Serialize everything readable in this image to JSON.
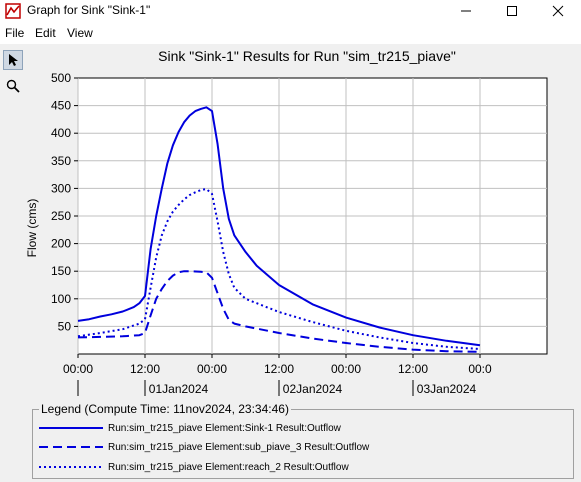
{
  "window": {
    "title": "Graph for Sink \"Sink-1\"",
    "minimize": "—",
    "maximize": "☐",
    "close": "✕"
  },
  "menu": [
    "File",
    "Edit",
    "View"
  ],
  "tools": [
    {
      "name": "select-tool",
      "icon": "arrow-pointer-icon",
      "active": true
    },
    {
      "name": "zoom-tool",
      "icon": "magnifier-icon",
      "active": false
    }
  ],
  "colors": {
    "series": "#0000dd",
    "grid": "#c0c0c0",
    "panel": "#f0f0f0"
  },
  "chart_data": {
    "type": "line",
    "title": "Sink \"Sink-1\" Results for Run \"sim_tr215_piave\"",
    "xlabel": "",
    "ylabel": "Flow (cms)",
    "ylim": [
      0,
      500
    ],
    "yticks": [
      50,
      100,
      150,
      200,
      250,
      300,
      350,
      400,
      450,
      500
    ],
    "xlim": [
      "2023-12-31T00:00",
      "2024-01-03T12:00"
    ],
    "xticks": [
      {
        "t": "2023-12-31T00:00",
        "label": "00:00"
      },
      {
        "t": "2023-12-31T12:00",
        "label": "12:00"
      },
      {
        "t": "2024-01-01T00:00",
        "label": "00:00"
      },
      {
        "t": "2024-01-01T12:00",
        "label": "12:00"
      },
      {
        "t": "2024-01-02T00:00",
        "label": "00:00"
      },
      {
        "t": "2024-01-02T12:00",
        "label": "12:00"
      },
      {
        "t": "2024-01-03T00:00",
        "label": "00:0"
      }
    ],
    "date_labels": [
      {
        "t": "2023-12-31T18:00",
        "label": "01Jan2024"
      },
      {
        "t": "2024-01-01T18:00",
        "label": "02Jan2024"
      },
      {
        "t": "2024-01-02T18:00",
        "label": "03Jan2024"
      }
    ],
    "date_separators": [
      "2023-12-31T00:00",
      "2023-12-31T12:00",
      "2024-01-01T12:00",
      "2024-01-02T12:00"
    ],
    "grid": true,
    "series": [
      {
        "name": "Run:sim_tr215_piave Element:Sink-1 Result:Outflow",
        "dash": "solid",
        "points": [
          [
            "2023-12-31T00:00",
            60
          ],
          [
            "2023-12-31T02:00",
            63
          ],
          [
            "2023-12-31T04:00",
            68
          ],
          [
            "2023-12-31T06:00",
            72
          ],
          [
            "2023-12-31T08:00",
            77
          ],
          [
            "2023-12-31T10:00",
            85
          ],
          [
            "2023-12-31T11:00",
            92
          ],
          [
            "2023-12-31T12:00",
            105
          ],
          [
            "2023-12-31T13:00",
            190
          ],
          [
            "2023-12-31T14:00",
            250
          ],
          [
            "2023-12-31T15:00",
            300
          ],
          [
            "2023-12-31T16:00",
            345
          ],
          [
            "2023-12-31T17:00",
            378
          ],
          [
            "2023-12-31T18:00",
            402
          ],
          [
            "2023-12-31T19:00",
            420
          ],
          [
            "2023-12-31T20:00",
            432
          ],
          [
            "2023-12-31T21:00",
            440
          ],
          [
            "2023-12-31T22:00",
            444
          ],
          [
            "2023-12-31T23:00",
            447
          ],
          [
            "2024-01-01T00:00",
            440
          ],
          [
            "2024-01-01T01:00",
            380
          ],
          [
            "2024-01-01T02:00",
            300
          ],
          [
            "2024-01-01T03:00",
            245
          ],
          [
            "2024-01-01T04:00",
            215
          ],
          [
            "2024-01-01T06:00",
            185
          ],
          [
            "2024-01-01T08:00",
            160
          ],
          [
            "2024-01-01T12:00",
            125
          ],
          [
            "2024-01-01T18:00",
            90
          ],
          [
            "2024-01-02T00:00",
            66
          ],
          [
            "2024-01-02T06:00",
            48
          ],
          [
            "2024-01-02T12:00",
            34
          ],
          [
            "2024-01-02T18:00",
            24
          ],
          [
            "2024-01-03T00:00",
            16
          ]
        ]
      },
      {
        "name": "Run:sim_tr215_piave Element:sub_piave_3 Result:Outflow",
        "dash": "dashed",
        "points": [
          [
            "2023-12-31T00:00",
            30
          ],
          [
            "2023-12-31T04:00",
            31
          ],
          [
            "2023-12-31T08:00",
            32
          ],
          [
            "2023-12-31T11:00",
            34
          ],
          [
            "2023-12-31T12:00",
            38
          ],
          [
            "2023-12-31T13:00",
            70
          ],
          [
            "2023-12-31T14:00",
            100
          ],
          [
            "2023-12-31T15:00",
            118
          ],
          [
            "2023-12-31T16:00",
            132
          ],
          [
            "2023-12-31T17:00",
            142
          ],
          [
            "2023-12-31T18:00",
            148
          ],
          [
            "2023-12-31T19:00",
            150
          ],
          [
            "2023-12-31T20:00",
            150
          ],
          [
            "2023-12-31T22:00",
            149
          ],
          [
            "2023-12-31T23:00",
            148
          ],
          [
            "2024-01-01T00:00",
            138
          ],
          [
            "2024-01-01T01:00",
            110
          ],
          [
            "2024-01-01T02:00",
            82
          ],
          [
            "2024-01-01T03:00",
            62
          ],
          [
            "2024-01-01T04:00",
            55
          ],
          [
            "2024-01-01T06:00",
            50
          ],
          [
            "2024-01-01T12:00",
            38
          ],
          [
            "2024-01-01T18:00",
            28
          ],
          [
            "2024-01-02T00:00",
            20
          ],
          [
            "2024-01-02T06:00",
            13
          ],
          [
            "2024-01-02T12:00",
            8
          ],
          [
            "2024-01-02T18:00",
            5
          ],
          [
            "2024-01-03T00:00",
            4
          ]
        ]
      },
      {
        "name": "Run:sim_tr215_piave Element:reach_2 Result:Outflow",
        "dash": "dotted",
        "points": [
          [
            "2023-12-31T00:00",
            32
          ],
          [
            "2023-12-31T04:00",
            38
          ],
          [
            "2023-12-31T08:00",
            45
          ],
          [
            "2023-12-31T11:00",
            55
          ],
          [
            "2023-12-31T12:00",
            63
          ],
          [
            "2023-12-31T13:00",
            120
          ],
          [
            "2023-12-31T14:00",
            175
          ],
          [
            "2023-12-31T15:00",
            215
          ],
          [
            "2023-12-31T16:00",
            240
          ],
          [
            "2023-12-31T17:00",
            258
          ],
          [
            "2023-12-31T18:00",
            270
          ],
          [
            "2023-12-31T19:00",
            280
          ],
          [
            "2023-12-31T20:00",
            288
          ],
          [
            "2023-12-31T21:00",
            293
          ],
          [
            "2023-12-31T22:00",
            297
          ],
          [
            "2023-12-31T23:00",
            299
          ],
          [
            "2024-01-01T00:00",
            290
          ],
          [
            "2024-01-01T01:00",
            240
          ],
          [
            "2024-01-01T02:00",
            185
          ],
          [
            "2024-01-01T03:00",
            145
          ],
          [
            "2024-01-01T04:00",
            120
          ],
          [
            "2024-01-01T06:00",
            100
          ],
          [
            "2024-01-01T12:00",
            76
          ],
          [
            "2024-01-01T18:00",
            58
          ],
          [
            "2024-01-02T00:00",
            42
          ],
          [
            "2024-01-02T06:00",
            30
          ],
          [
            "2024-01-02T12:00",
            20
          ],
          [
            "2024-01-02T18:00",
            13
          ],
          [
            "2024-01-03T00:00",
            9
          ]
        ]
      }
    ]
  },
  "legend": {
    "title": "Legend (Compute Time: 11nov2024, 23:34:46)"
  }
}
